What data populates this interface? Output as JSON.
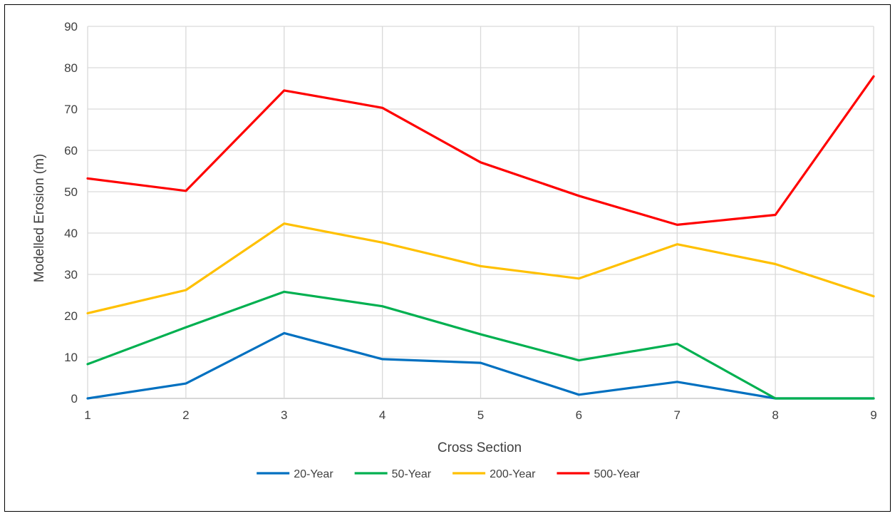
{
  "chart_data": {
    "type": "line",
    "title": "",
    "xlabel": "Cross Section",
    "ylabel": "Modelled Erosion (m)",
    "x": [
      1,
      2,
      3,
      4,
      5,
      6,
      7,
      8,
      9
    ],
    "x_tick_labels": [
      "1",
      "2",
      "3",
      "4",
      "5",
      "6",
      "7",
      "8",
      "9"
    ],
    "xlim": [
      1,
      9
    ],
    "ylim": [
      0,
      90
    ],
    "y_ticks": [
      0,
      10,
      20,
      30,
      40,
      50,
      60,
      70,
      80,
      90
    ],
    "y_tick_labels": [
      "0",
      "10",
      "20",
      "30",
      "40",
      "50",
      "60",
      "70",
      "80",
      "90"
    ],
    "grid": true,
    "legend_position": "bottom",
    "series": [
      {
        "name": "20-Year",
        "color": "#0070c0",
        "values": [
          0,
          3.6,
          15.8,
          9.5,
          8.6,
          0.9,
          4.0,
          0,
          0
        ]
      },
      {
        "name": "50-Year",
        "color": "#00b050",
        "values": [
          8.3,
          17.2,
          25.8,
          22.3,
          15.5,
          9.2,
          13.2,
          0,
          0
        ]
      },
      {
        "name": "200-Year",
        "color": "#ffc000",
        "values": [
          20.6,
          26.2,
          42.3,
          37.7,
          32.0,
          29.0,
          37.3,
          32.5,
          24.7
        ]
      },
      {
        "name": "500-Year",
        "color": "#ff0000",
        "values": [
          53.2,
          50.2,
          74.5,
          70.3,
          57.1,
          49.0,
          42.0,
          44.4,
          77.9
        ]
      }
    ]
  }
}
